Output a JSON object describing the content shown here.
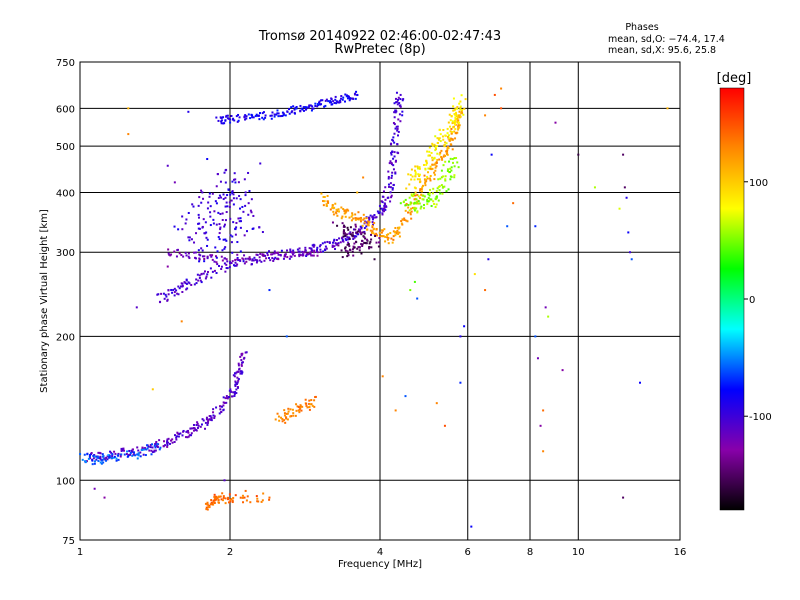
{
  "header": {
    "title_line1": "Tromsø 20140922 02:46:00-02:47:43",
    "title_line2": "RwPretec (8p)"
  },
  "phase_box": {
    "heading": "Phases",
    "line_o": "mean, sd,O: −74.4, 17.4",
    "line_x": "mean, sd,X:  95.6, 25.8"
  },
  "colorbar": {
    "unit_label": "[deg]",
    "tick_labels": [
      "100",
      "0",
      "-100"
    ],
    "range": [
      -180,
      180
    ],
    "colors": [
      "#000000",
      "#8800aa",
      "#0000ff",
      "#00ffff",
      "#00ff00",
      "#ffff00",
      "#ff8800",
      "#ff0000"
    ]
  },
  "chart_data": {
    "type": "scatter",
    "xlabel": "Frequency [MHz]",
    "ylabel": "Stationary phase Virtual Height [km]",
    "x_scale": "log",
    "y_scale": "log",
    "xlim": [
      1,
      16
    ],
    "ylim": [
      75,
      750
    ],
    "x_ticks": [
      1,
      2,
      4,
      6,
      8,
      10,
      16
    ],
    "x_tick_labels": [
      "1",
      "2",
      "4",
      "6",
      "8",
      "10",
      "16"
    ],
    "y_ticks": [
      75,
      100,
      200,
      300,
      400,
      500,
      600,
      750
    ],
    "y_tick_labels": [
      "75",
      "100",
      "200",
      "300",
      "400",
      "500",
      "600",
      "750"
    ],
    "grid": true,
    "color_by": "phase_deg",
    "traces": [
      {
        "name": "E-layer O trace",
        "phase": -110,
        "spread": 0.018,
        "points": [
          [
            1.05,
            112
          ],
          [
            1.1,
            112
          ],
          [
            1.2,
            114
          ],
          [
            1.3,
            115
          ],
          [
            1.4,
            117
          ],
          [
            1.5,
            120
          ],
          [
            1.6,
            124
          ],
          [
            1.7,
            128
          ],
          [
            1.8,
            133
          ],
          [
            1.9,
            140
          ],
          [
            2.0,
            150
          ],
          [
            2.05,
            160
          ],
          [
            2.1,
            172
          ],
          [
            2.15,
            185
          ]
        ]
      },
      {
        "name": "E-layer low cyan",
        "phase": -60,
        "spread": 0.02,
        "points": [
          [
            1.02,
            112
          ],
          [
            1.08,
            110
          ],
          [
            1.15,
            112
          ],
          [
            1.3,
            114
          ],
          [
            1.45,
            117
          ]
        ]
      },
      {
        "name": "E-layer X trace",
        "phase": 130,
        "spread": 0.02,
        "points": [
          [
            2.5,
            134
          ],
          [
            2.65,
            138
          ],
          [
            2.8,
            142
          ],
          [
            2.95,
            147
          ]
        ]
      },
      {
        "name": "F-layer O trace",
        "phase": -105,
        "spread": 0.02,
        "points": [
          [
            1.45,
            240
          ],
          [
            1.55,
            248
          ],
          [
            1.65,
            256
          ],
          [
            1.8,
            268
          ],
          [
            2.0,
            285
          ],
          [
            2.2,
            290
          ],
          [
            2.5,
            295
          ],
          [
            2.8,
            300
          ],
          [
            3.0,
            305
          ],
          [
            3.2,
            312
          ],
          [
            3.4,
            320
          ],
          [
            3.6,
            330
          ],
          [
            3.8,
            345
          ],
          [
            4.0,
            360
          ],
          [
            4.1,
            380
          ],
          [
            4.2,
            420
          ],
          [
            4.25,
            470
          ],
          [
            4.3,
            530
          ],
          [
            4.35,
            600
          ],
          [
            4.4,
            640
          ]
        ]
      },
      {
        "name": "F-layer lower branch",
        "phase": -120,
        "spread": 0.015,
        "points": [
          [
            1.5,
            300
          ],
          [
            1.7,
            295
          ],
          [
            1.9,
            290
          ],
          [
            2.2,
            292
          ],
          [
            2.5,
            295
          ],
          [
            2.8,
            297
          ],
          [
            3.0,
            300
          ]
        ]
      },
      {
        "name": "F-layer spread echoes",
        "phase": -100,
        "spread": 0.08,
        "points": [
          [
            1.6,
            330
          ],
          [
            1.75,
            360
          ],
          [
            1.9,
            380
          ],
          [
            2.0,
            400
          ],
          [
            2.1,
            420
          ],
          [
            1.8,
            320
          ],
          [
            2.1,
            340
          ],
          [
            1.7,
            310
          ],
          [
            2.3,
            315
          ],
          [
            1.95,
            440
          ]
        ]
      },
      {
        "name": "F-layer X trace",
        "phase": 120,
        "spread": 0.02,
        "points": [
          [
            3.1,
            390
          ],
          [
            3.2,
            370
          ],
          [
            3.4,
            360
          ],
          [
            3.6,
            355
          ],
          [
            3.8,
            340
          ],
          [
            4.0,
            330
          ],
          [
            4.2,
            320
          ],
          [
            4.4,
            340
          ],
          [
            4.6,
            370
          ],
          [
            4.8,
            400
          ],
          [
            5.0,
            430
          ],
          [
            5.2,
            460
          ],
          [
            5.4,
            490
          ],
          [
            5.6,
            520
          ],
          [
            5.7,
            560
          ],
          [
            5.8,
            600
          ]
        ]
      },
      {
        "name": "F-layer X upper",
        "phase": 85,
        "spread": 0.03,
        "points": [
          [
            4.6,
            420
          ],
          [
            4.8,
            440
          ],
          [
            5.0,
            470
          ],
          [
            5.2,
            500
          ],
          [
            5.4,
            530
          ],
          [
            5.6,
            560
          ],
          [
            5.7,
            590
          ],
          [
            5.8,
            620
          ]
        ]
      },
      {
        "name": "F-layer X green",
        "phase": 55,
        "spread": 0.03,
        "points": [
          [
            4.5,
            390
          ],
          [
            4.7,
            380
          ],
          [
            4.9,
            375
          ],
          [
            5.1,
            390
          ],
          [
            5.3,
            410
          ],
          [
            5.5,
            440
          ],
          [
            5.6,
            470
          ]
        ]
      },
      {
        "name": "F-layer purple mix",
        "phase": -150,
        "spread": 0.03,
        "points": [
          [
            3.3,
            340
          ],
          [
            3.5,
            330
          ],
          [
            3.7,
            320
          ],
          [
            3.9,
            315
          ],
          [
            3.4,
            300
          ],
          [
            3.6,
            305
          ]
        ]
      },
      {
        "name": "Multiple echo",
        "phase": -85,
        "spread": 0.015,
        "points": [
          [
            1.9,
            565
          ],
          [
            2.0,
            570
          ],
          [
            2.2,
            575
          ],
          [
            2.4,
            580
          ],
          [
            2.6,
            590
          ],
          [
            2.8,
            600
          ],
          [
            3.0,
            610
          ],
          [
            3.2,
            620
          ],
          [
            3.4,
            630
          ],
          [
            3.6,
            640
          ]
        ]
      },
      {
        "name": "Orange low echoes",
        "phase": 140,
        "spread": 0.02,
        "points": [
          [
            1.8,
            88
          ],
          [
            1.85,
            90
          ],
          [
            1.9,
            92
          ],
          [
            2.05,
            91
          ],
          [
            2.4,
            92
          ]
        ]
      }
    ],
    "scattered_points": [
      [
        1.07,
        96,
        -120
      ],
      [
        1.12,
        92,
        -130
      ],
      [
        1.25,
        600,
        110
      ],
      [
        1.25,
        530,
        130
      ],
      [
        1.3,
        230,
        -110
      ],
      [
        1.4,
        155,
        100
      ],
      [
        1.5,
        455,
        -110
      ],
      [
        1.55,
        420,
        -120
      ],
      [
        1.5,
        280,
        -130
      ],
      [
        1.6,
        215,
        130
      ],
      [
        1.65,
        590,
        -90
      ],
      [
        1.8,
        470,
        -80
      ],
      [
        1.95,
        100,
        -110
      ],
      [
        2.15,
        95,
        140
      ],
      [
        2.3,
        460,
        -100
      ],
      [
        2.4,
        250,
        -70
      ],
      [
        2.6,
        200,
        -60
      ],
      [
        3.3,
        310,
        -140
      ],
      [
        3.6,
        400,
        110
      ],
      [
        3.9,
        290,
        -160
      ],
      [
        3.7,
        430,
        130
      ],
      [
        4.05,
        165,
        130
      ],
      [
        4.3,
        140,
        130
      ],
      [
        4.5,
        150,
        -60
      ],
      [
        4.6,
        250,
        50
      ],
      [
        4.7,
        260,
        40
      ],
      [
        4.75,
        240,
        -60
      ],
      [
        5.2,
        145,
        130
      ],
      [
        5.4,
        130,
        150
      ],
      [
        5.8,
        200,
        -90
      ],
      [
        5.8,
        160,
        -70
      ],
      [
        5.9,
        210,
        -80
      ],
      [
        6.1,
        80,
        -80
      ],
      [
        6.2,
        270,
        90
      ],
      [
        6.5,
        250,
        140
      ],
      [
        6.5,
        580,
        130
      ],
      [
        6.6,
        290,
        -90
      ],
      [
        6.7,
        480,
        -80
      ],
      [
        6.8,
        640,
        150
      ],
      [
        7.0,
        660,
        130
      ],
      [
        7.0,
        600,
        150
      ],
      [
        7.2,
        340,
        -60
      ],
      [
        7.4,
        380,
        140
      ],
      [
        8.2,
        340,
        -70
      ],
      [
        8.2,
        200,
        -60
      ],
      [
        8.3,
        180,
        -120
      ],
      [
        8.4,
        130,
        -130
      ],
      [
        8.5,
        115,
        130
      ],
      [
        8.5,
        140,
        140
      ],
      [
        8.6,
        230,
        -120
      ],
      [
        8.7,
        220,
        60
      ],
      [
        9.0,
        560,
        -130
      ],
      [
        9.3,
        170,
        -130
      ],
      [
        10.0,
        480,
        -160
      ],
      [
        10.8,
        410,
        60
      ],
      [
        12.3,
        480,
        -150
      ],
      [
        12.4,
        410,
        -150
      ],
      [
        12.5,
        390,
        -90
      ],
      [
        12.6,
        330,
        -80
      ],
      [
        12.7,
        300,
        -100
      ],
      [
        12.8,
        290,
        -60
      ],
      [
        13.3,
        160,
        -80
      ],
      [
        15.1,
        600,
        110
      ],
      [
        12.3,
        92,
        -150
      ],
      [
        12.1,
        370,
        70
      ]
    ]
  }
}
